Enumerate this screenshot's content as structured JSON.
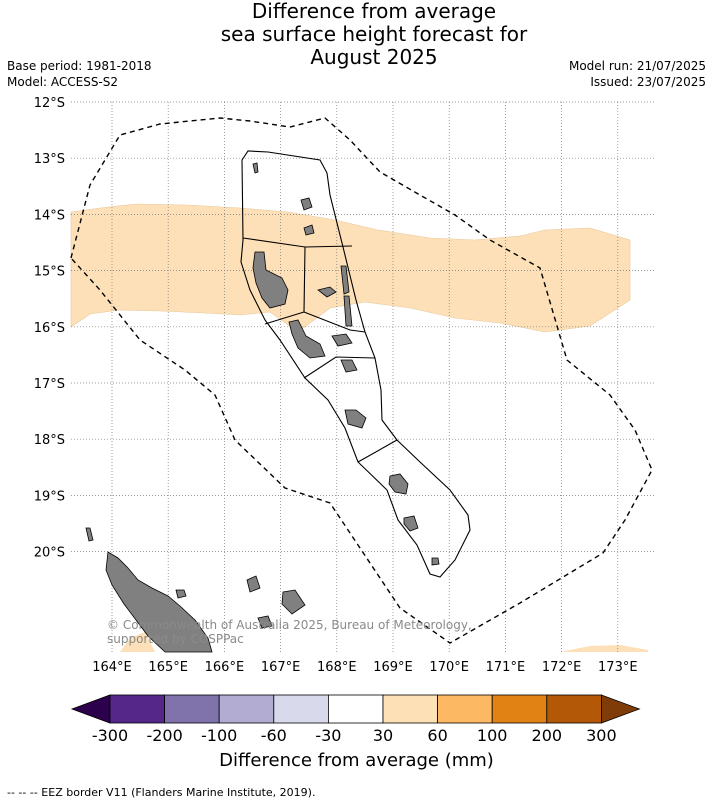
{
  "title": {
    "line1": "Difference from average",
    "line2": "sea surface height forecast for",
    "line3": "August 2025"
  },
  "meta": {
    "base_period": "Base period: 1981-2018",
    "model": "Model: ACCESS-S2",
    "model_run": "Model run: 21/07/2025",
    "issued": "Issued: 23/07/2025"
  },
  "map": {
    "lat_labels": [
      "12°S",
      "13°S",
      "14°S",
      "15°S",
      "16°S",
      "17°S",
      "18°S",
      "19°S",
      "20°S"
    ],
    "lon_labels": [
      "164°E",
      "165°E",
      "166°E",
      "167°E",
      "168°E",
      "169°E",
      "170°E",
      "171°E",
      "172°E",
      "173°E"
    ],
    "colors": {
      "land": "#808080",
      "anomaly_30_60": "#fde0b7",
      "grid": "#777777"
    },
    "copyright": "© Commonwealth of Australia 2025, Bureau of Meteorology, supported by COSPPac"
  },
  "colorbar": {
    "ticks": [
      "-300",
      "-200",
      "-100",
      "-60",
      "-30",
      "30",
      "60",
      "100",
      "200",
      "300"
    ],
    "colors": [
      "#2d004b",
      "#542788",
      "#8073ac",
      "#b2abd2",
      "#d8daeb",
      "#ffffff",
      "#fee0b6",
      "#fdb863",
      "#e08214",
      "#b35806",
      "#7f3b08"
    ],
    "label": "Difference from average (mm)"
  },
  "footnote": "--  --  -- EEZ border V11 (Flanders Marine Institute, 2019)."
}
